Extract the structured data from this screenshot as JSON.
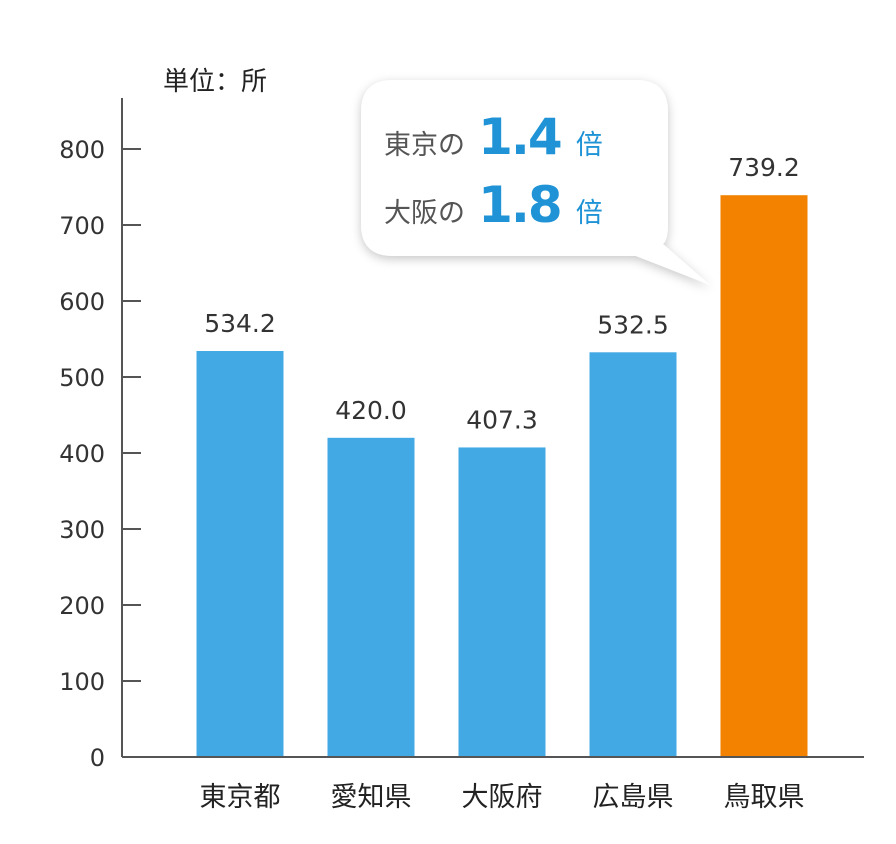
{
  "chart_data": {
    "type": "bar",
    "unit_label": "単位：所",
    "categories": [
      "東京都",
      "愛知県",
      "大阪府",
      "広島県",
      "鳥取県"
    ],
    "values": [
      534.2,
      420.0,
      407.3,
      532.5,
      739.2
    ],
    "value_labels": [
      "534.2",
      "420.0",
      "407.3",
      "532.5",
      "739.2"
    ],
    "highlight_index": 4,
    "ylim": [
      0,
      800
    ],
    "yticks": [
      0,
      100,
      200,
      300,
      400,
      500,
      600,
      700,
      800
    ],
    "colors": {
      "default": "#42a9e4",
      "highlight": "#f28200",
      "accent": "#1f93d6"
    },
    "callout": {
      "lines": [
        {
          "prefix": "東京の",
          "value": "1.4",
          "unit": "倍"
        },
        {
          "prefix": "大阪の",
          "value": "1.8",
          "unit": "倍"
        }
      ]
    }
  }
}
